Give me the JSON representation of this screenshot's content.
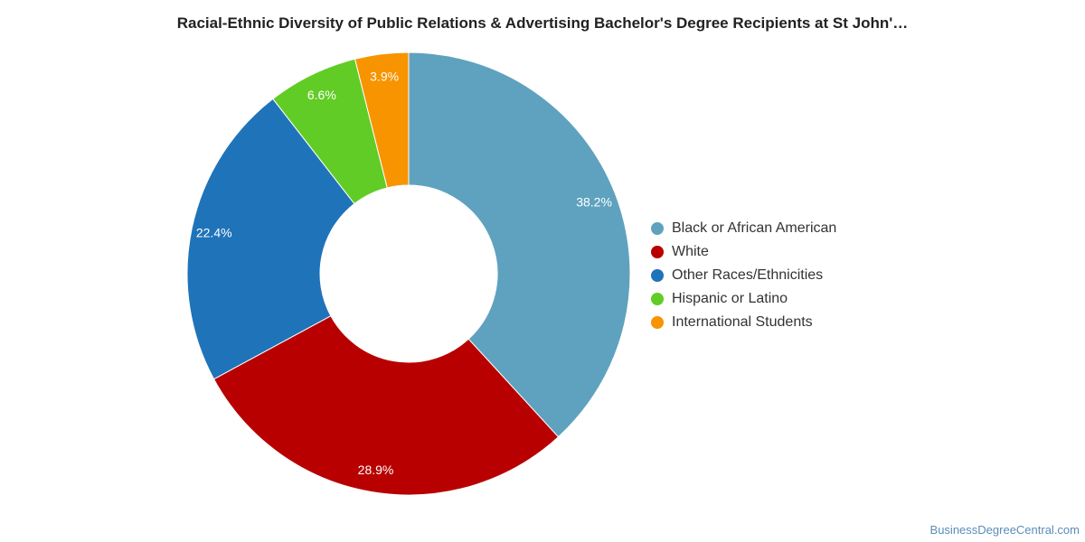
{
  "chart_data": {
    "type": "pie",
    "donut": true,
    "title": "Racial-Ethnic Diversity of Public Relations & Advertising Bachelor's Degree Recipients at St John'…",
    "slices": [
      {
        "name": "Black or African American",
        "value": 38.2,
        "label": "38.2%",
        "color": "#5fa2bf"
      },
      {
        "name": "White",
        "value": 28.9,
        "label": "28.9%",
        "color": "#b80000"
      },
      {
        "name": "Other Races/Ethnicities",
        "value": 22.4,
        "label": "22.4%",
        "color": "#1f73b9"
      },
      {
        "name": "Hispanic or Latino",
        "value": 6.6,
        "label": "6.6%",
        "color": "#62cc26"
      },
      {
        "name": "International Students",
        "value": 3.9,
        "label": "3.9%",
        "color": "#f79400"
      }
    ],
    "legend_position": "right"
  },
  "footer": {
    "source": "BusinessDegreeCentral.com"
  }
}
